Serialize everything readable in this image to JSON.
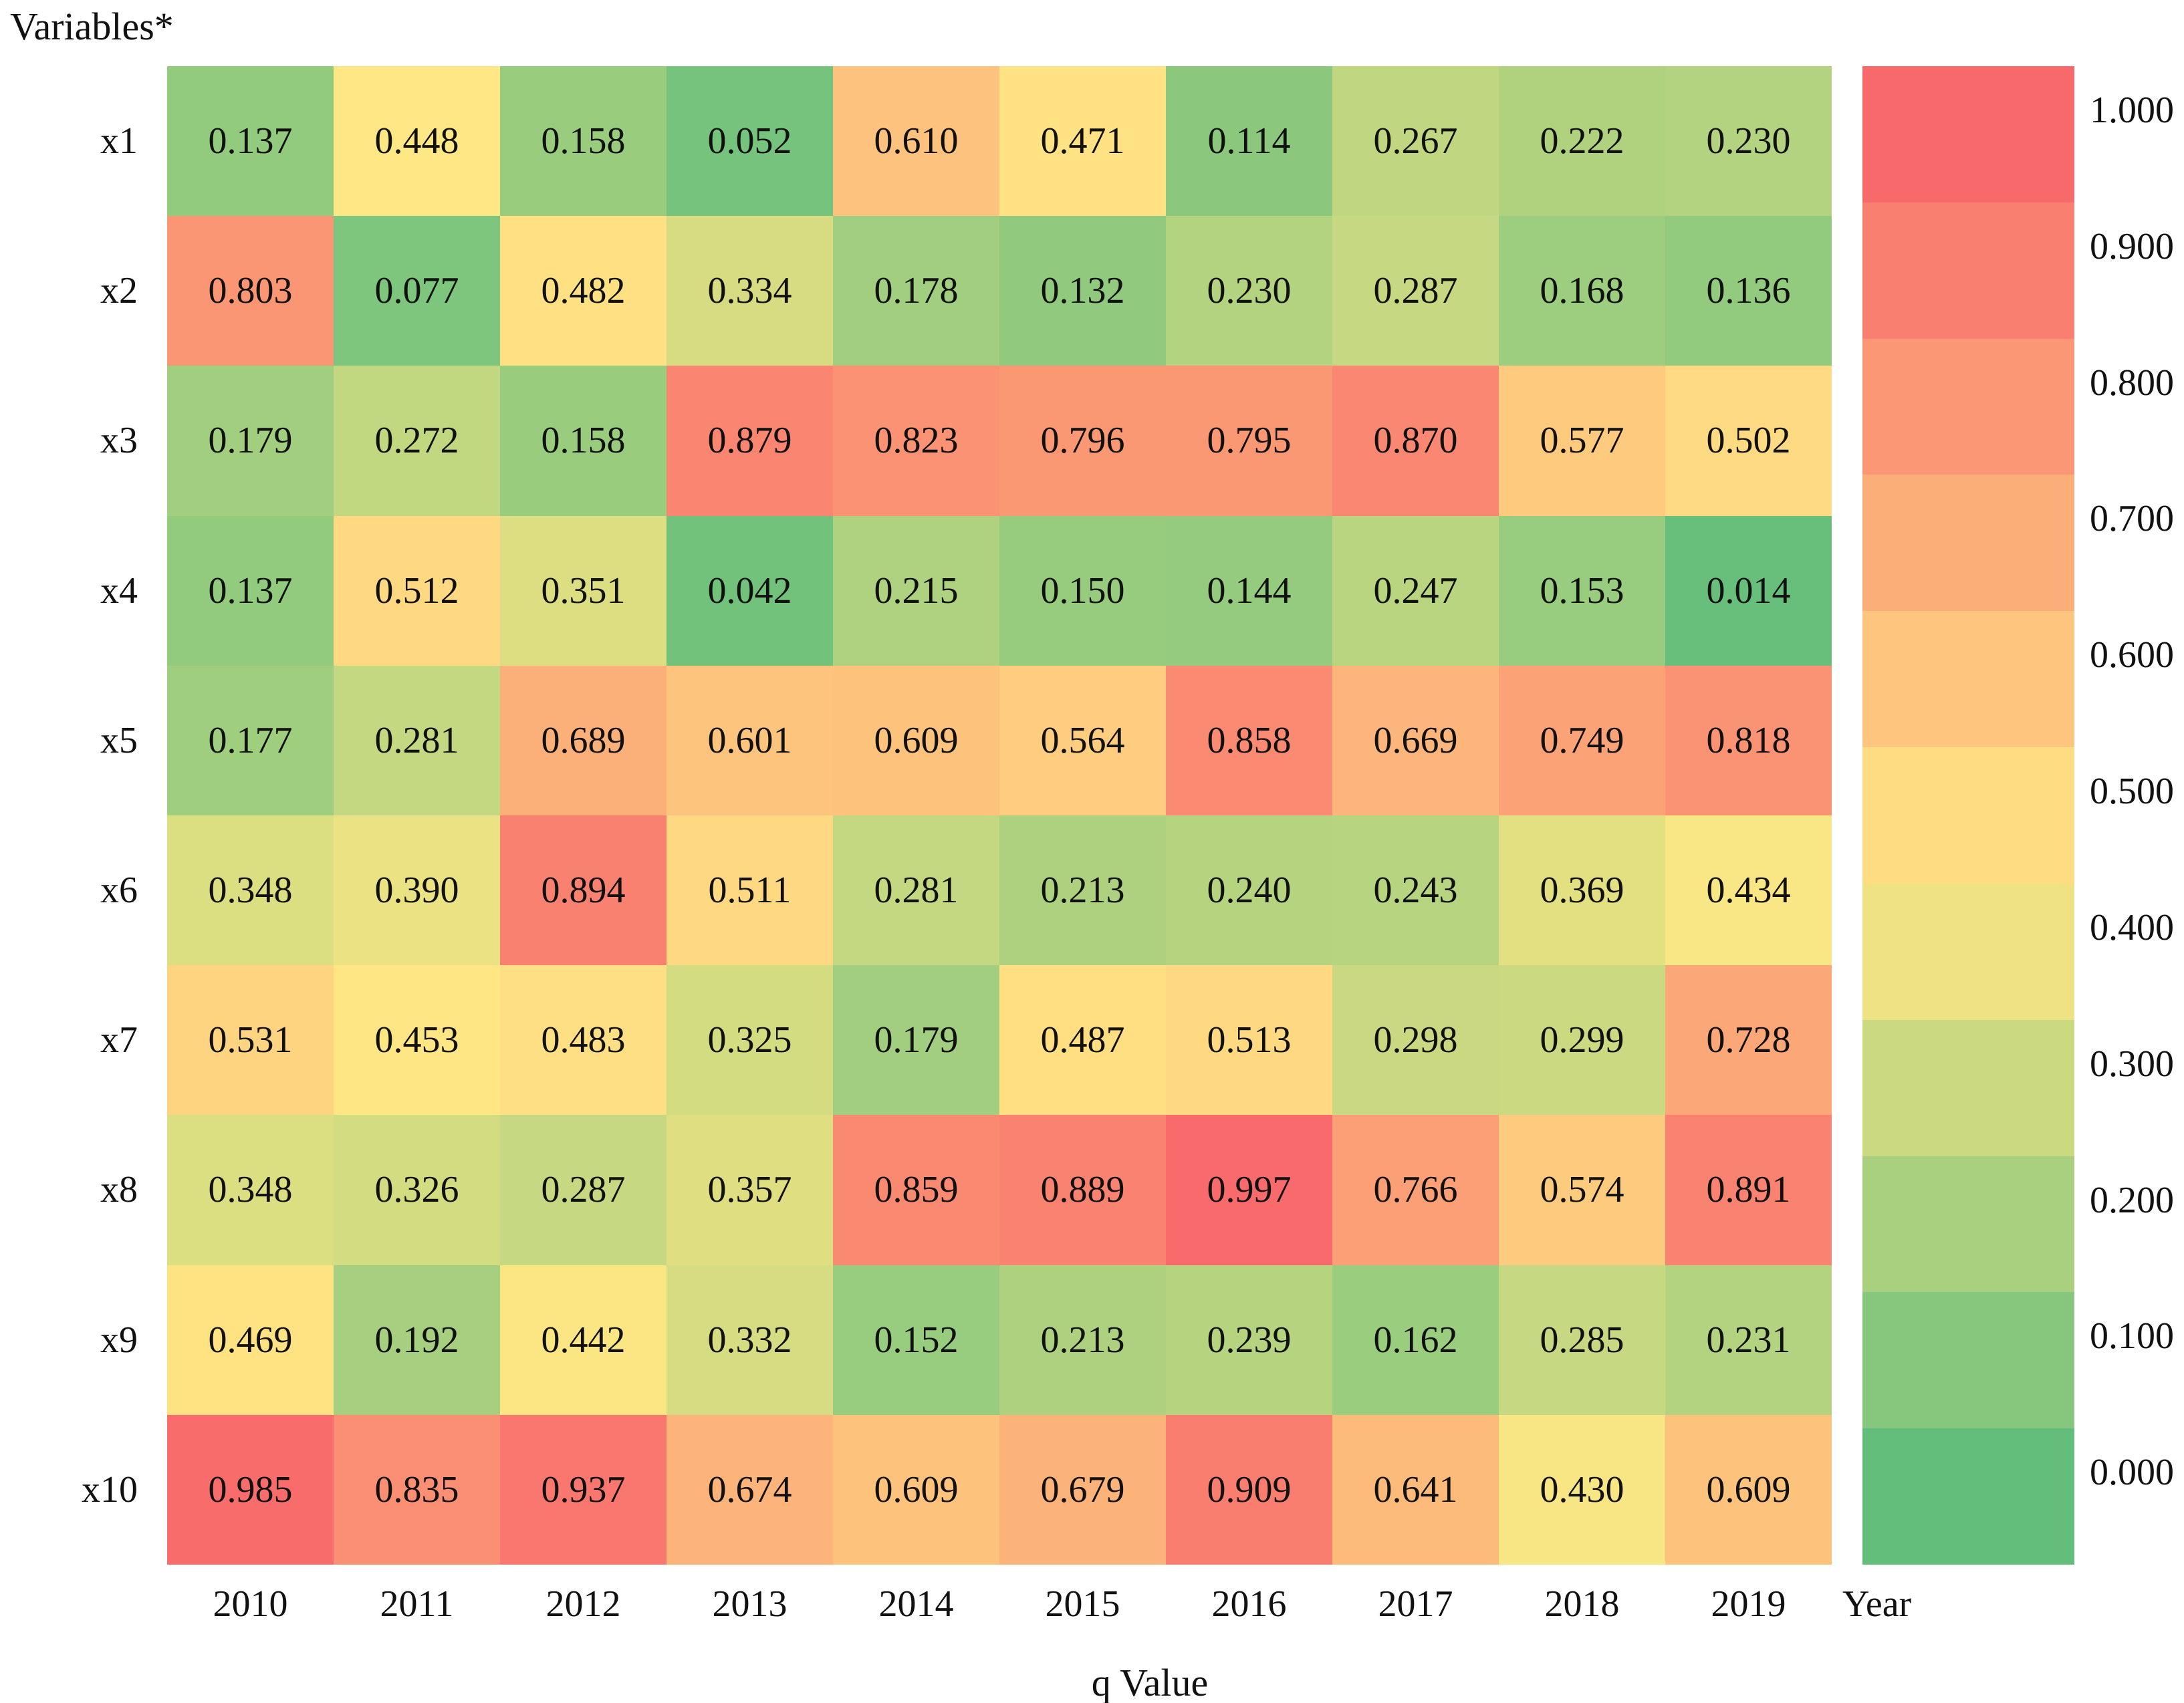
{
  "chart_data": {
    "type": "heatmap",
    "title": "Variables*",
    "x_axis_label": "Year",
    "x_axis_caption": "q Value",
    "columns": [
      "2010",
      "2011",
      "2012",
      "2013",
      "2014",
      "2015",
      "2016",
      "2017",
      "2018",
      "2019"
    ],
    "rows": [
      "x1",
      "x2",
      "x3",
      "x4",
      "x5",
      "x6",
      "x7",
      "x8",
      "x9",
      "x10"
    ],
    "values": [
      [
        0.137,
        0.448,
        0.158,
        0.052,
        0.61,
        0.471,
        0.114,
        0.267,
        0.222,
        0.23
      ],
      [
        0.803,
        0.077,
        0.482,
        0.334,
        0.178,
        0.132,
        0.23,
        0.287,
        0.168,
        0.136
      ],
      [
        0.179,
        0.272,
        0.158,
        0.879,
        0.823,
        0.796,
        0.795,
        0.87,
        0.577,
        0.502
      ],
      [
        0.137,
        0.512,
        0.351,
        0.042,
        0.215,
        0.15,
        0.144,
        0.247,
        0.153,
        0.014
      ],
      [
        0.177,
        0.281,
        0.689,
        0.601,
        0.609,
        0.564,
        0.858,
        0.669,
        0.749,
        0.818
      ],
      [
        0.348,
        0.39,
        0.894,
        0.511,
        0.281,
        0.213,
        0.24,
        0.243,
        0.369,
        0.434
      ],
      [
        0.531,
        0.453,
        0.483,
        0.325,
        0.179,
        0.487,
        0.513,
        0.298,
        0.299,
        0.728
      ],
      [
        0.348,
        0.326,
        0.287,
        0.357,
        0.859,
        0.889,
        0.997,
        0.766,
        0.574,
        0.891
      ],
      [
        0.469,
        0.192,
        0.442,
        0.332,
        0.152,
        0.213,
        0.239,
        0.162,
        0.285,
        0.231
      ],
      [
        0.985,
        0.835,
        0.937,
        0.674,
        0.609,
        0.679,
        0.909,
        0.641,
        0.43,
        0.609
      ]
    ],
    "cell_value_decimals": 3,
    "colorbar": {
      "min": 0.0,
      "max": 1.0,
      "tick_labels": [
        "1.000",
        "0.900",
        "0.800",
        "0.700",
        "0.600",
        "0.500",
        "0.400",
        "0.300",
        "0.200",
        "0.100",
        "0.000"
      ]
    },
    "colormap": {
      "stops": [
        {
          "value": 0.0,
          "color": "#63BE7B"
        },
        {
          "value": 0.45,
          "color": "#FFE784"
        },
        {
          "value": 1.0,
          "color": "#F8696B"
        }
      ]
    },
    "text_color": "#111111",
    "background": "#FFFFFF"
  }
}
